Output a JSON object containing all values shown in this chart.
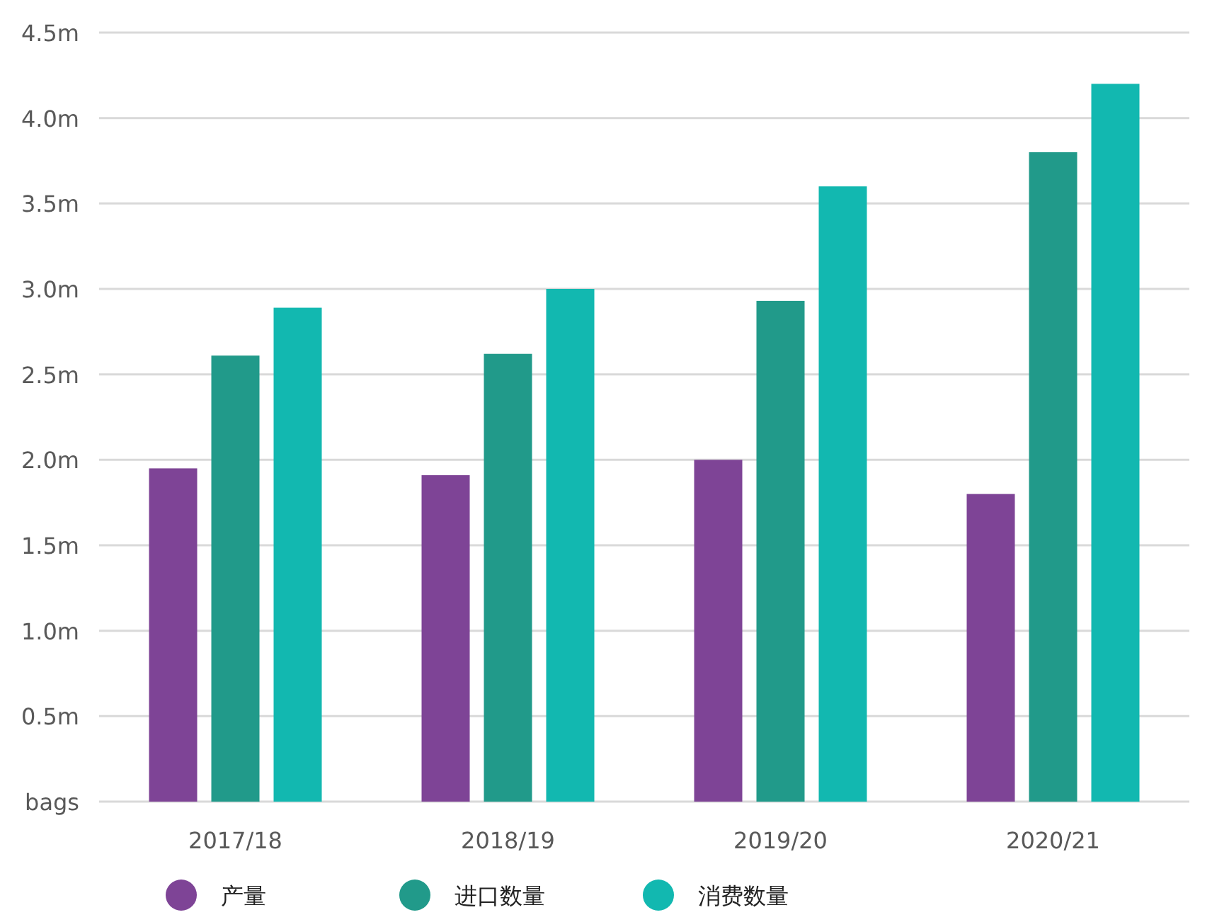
{
  "chart_data": {
    "type": "bar",
    "categories": [
      "2017/18",
      "2018/19",
      "2019/20",
      "2020/21"
    ],
    "series": [
      {
        "name": "产量",
        "color": "#7e4496",
        "values": [
          1.95,
          1.91,
          2.0,
          1.8
        ]
      },
      {
        "name": "进口数量",
        "color": "#219a8a",
        "values": [
          2.61,
          2.62,
          2.93,
          3.8
        ]
      },
      {
        "name": "消费数量",
        "color": "#12b8b0",
        "values": [
          2.89,
          3.0,
          3.6,
          4.2
        ]
      }
    ],
    "ylim": [
      0,
      4.5
    ],
    "yticks": [
      {
        "value": 0,
        "label": "bags"
      },
      {
        "value": 0.5,
        "label": "0.5m"
      },
      {
        "value": 1.0,
        "label": "1.0m"
      },
      {
        "value": 1.5,
        "label": "1.5m"
      },
      {
        "value": 2.0,
        "label": "2.0m"
      },
      {
        "value": 2.5,
        "label": "2.5m"
      },
      {
        "value": 3.0,
        "label": "3.0m"
      },
      {
        "value": 3.5,
        "label": "3.5m"
      },
      {
        "value": 4.0,
        "label": "4.0m"
      },
      {
        "value": 4.5,
        "label": "4.5m"
      }
    ],
    "grid": "y",
    "legend": "bottom"
  }
}
